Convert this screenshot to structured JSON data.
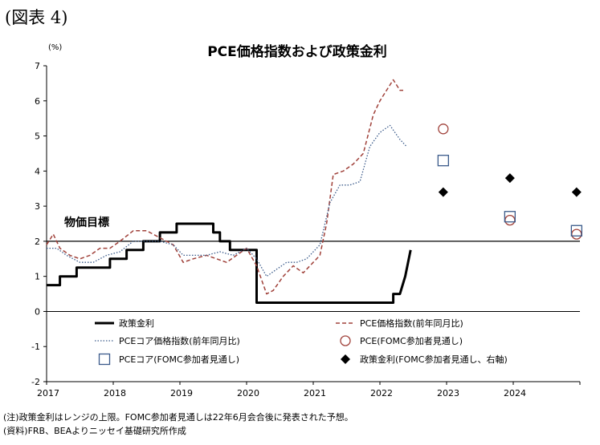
{
  "figure_label": "(図表 4)",
  "chart_data": {
    "type": "line",
    "title": "PCE価格指数および政策金利",
    "y_unit": "(%)",
    "ylim": [
      -2,
      7
    ],
    "yticks": [
      -2,
      -1,
      0,
      1,
      2,
      3,
      4,
      5,
      6,
      7
    ],
    "xlim": [
      2017,
      2025
    ],
    "xticks": [
      "2017",
      "2018",
      "2019",
      "2020",
      "2021",
      "2022",
      "2023",
      "2024"
    ],
    "grid": false,
    "legend_position": "bottom",
    "annotation": "物価目標",
    "reference_line": 2,
    "series": [
      {
        "name": "政策金利",
        "style": "solid-step",
        "color": "#000000",
        "points": [
          [
            2017.0,
            0.75
          ],
          [
            2017.2,
            0.75
          ],
          [
            2017.2,
            1.0
          ],
          [
            2017.45,
            1.0
          ],
          [
            2017.45,
            1.25
          ],
          [
            2017.95,
            1.25
          ],
          [
            2017.95,
            1.5
          ],
          [
            2018.2,
            1.5
          ],
          [
            2018.2,
            1.75
          ],
          [
            2018.45,
            1.75
          ],
          [
            2018.45,
            2.0
          ],
          [
            2018.7,
            2.0
          ],
          [
            2018.7,
            2.25
          ],
          [
            2018.95,
            2.25
          ],
          [
            2018.95,
            2.5
          ],
          [
            2019.5,
            2.5
          ],
          [
            2019.5,
            2.25
          ],
          [
            2019.6,
            2.25
          ],
          [
            2019.6,
            2.0
          ],
          [
            2019.75,
            2.0
          ],
          [
            2019.75,
            1.75
          ],
          [
            2020.15,
            1.75
          ],
          [
            2020.15,
            0.25
          ],
          [
            2022.1,
            0.25
          ],
          [
            2022.2,
            0.25
          ],
          [
            2022.2,
            0.5
          ],
          [
            2022.3,
            0.5
          ],
          [
            2022.38,
            1.0
          ],
          [
            2022.46,
            1.75
          ]
        ]
      },
      {
        "name": "PCE価格指数(前年同月比)",
        "style": "dashed",
        "color": "#a0413a",
        "points": [
          [
            2017.0,
            1.9
          ],
          [
            2017.1,
            2.2
          ],
          [
            2017.2,
            1.8
          ],
          [
            2017.35,
            1.6
          ],
          [
            2017.5,
            1.5
          ],
          [
            2017.65,
            1.6
          ],
          [
            2017.8,
            1.8
          ],
          [
            2017.95,
            1.8
          ],
          [
            2018.1,
            2.0
          ],
          [
            2018.3,
            2.3
          ],
          [
            2018.5,
            2.3
          ],
          [
            2018.7,
            2.1
          ],
          [
            2018.9,
            1.9
          ],
          [
            2019.05,
            1.4
          ],
          [
            2019.2,
            1.5
          ],
          [
            2019.4,
            1.6
          ],
          [
            2019.55,
            1.5
          ],
          [
            2019.7,
            1.4
          ],
          [
            2019.85,
            1.6
          ],
          [
            2020.0,
            1.8
          ],
          [
            2020.15,
            1.3
          ],
          [
            2020.3,
            0.5
          ],
          [
            2020.4,
            0.6
          ],
          [
            2020.55,
            1.0
          ],
          [
            2020.7,
            1.3
          ],
          [
            2020.85,
            1.1
          ],
          [
            2021.0,
            1.4
          ],
          [
            2021.1,
            1.6
          ],
          [
            2021.2,
            2.5
          ],
          [
            2021.3,
            3.9
          ],
          [
            2021.45,
            4.0
          ],
          [
            2021.6,
            4.2
          ],
          [
            2021.75,
            4.5
          ],
          [
            2021.9,
            5.6
          ],
          [
            2022.0,
            6.0
          ],
          [
            2022.1,
            6.3
          ],
          [
            2022.2,
            6.6
          ],
          [
            2022.3,
            6.3
          ],
          [
            2022.35,
            6.3
          ]
        ]
      },
      {
        "name": "PCEコア価格指数(前年同月比)",
        "style": "dotted",
        "color": "#3a5a8a",
        "points": [
          [
            2017.0,
            1.8
          ],
          [
            2017.15,
            1.8
          ],
          [
            2017.3,
            1.6
          ],
          [
            2017.5,
            1.4
          ],
          [
            2017.7,
            1.4
          ],
          [
            2017.9,
            1.6
          ],
          [
            2018.1,
            1.7
          ],
          [
            2018.3,
            2.0
          ],
          [
            2018.5,
            2.0
          ],
          [
            2018.7,
            2.0
          ],
          [
            2018.9,
            1.9
          ],
          [
            2019.05,
            1.6
          ],
          [
            2019.2,
            1.6
          ],
          [
            2019.4,
            1.6
          ],
          [
            2019.6,
            1.7
          ],
          [
            2019.8,
            1.6
          ],
          [
            2020.0,
            1.8
          ],
          [
            2020.15,
            1.5
          ],
          [
            2020.3,
            1.0
          ],
          [
            2020.45,
            1.2
          ],
          [
            2020.6,
            1.4
          ],
          [
            2020.75,
            1.4
          ],
          [
            2020.9,
            1.5
          ],
          [
            2021.1,
            1.9
          ],
          [
            2021.25,
            3.1
          ],
          [
            2021.4,
            3.6
          ],
          [
            2021.55,
            3.6
          ],
          [
            2021.7,
            3.7
          ],
          [
            2021.85,
            4.7
          ],
          [
            2022.0,
            5.1
          ],
          [
            2022.15,
            5.3
          ],
          [
            2022.3,
            4.9
          ],
          [
            2022.4,
            4.7
          ]
        ]
      },
      {
        "name": "PCE(FOMC参加者見通し)",
        "style": "marker-circle",
        "color": "#a0413a",
        "points": [
          [
            2022.95,
            5.2
          ],
          [
            2023.95,
            2.6
          ],
          [
            2024.95,
            2.2
          ]
        ]
      },
      {
        "name": "PCEコア(FOMC参加者見通し)",
        "style": "marker-square",
        "color": "#3a5a8a",
        "points": [
          [
            2022.95,
            4.3
          ],
          [
            2023.95,
            2.7
          ],
          [
            2024.95,
            2.3
          ]
        ]
      },
      {
        "name": "政策金利(FOMC参加者見通し、右軸)",
        "style": "marker-diamond",
        "color": "#000000",
        "points": [
          [
            2022.95,
            3.4
          ],
          [
            2023.95,
            3.8
          ],
          [
            2024.95,
            3.4
          ]
        ]
      }
    ]
  },
  "notes": [
    "(注)政策金利はレンジの上限。FOMC参加者見通しは22年6月会合後に発表された予想。",
    "(資料)FRB、BEAよりニッセイ基礎研究所作成"
  ]
}
